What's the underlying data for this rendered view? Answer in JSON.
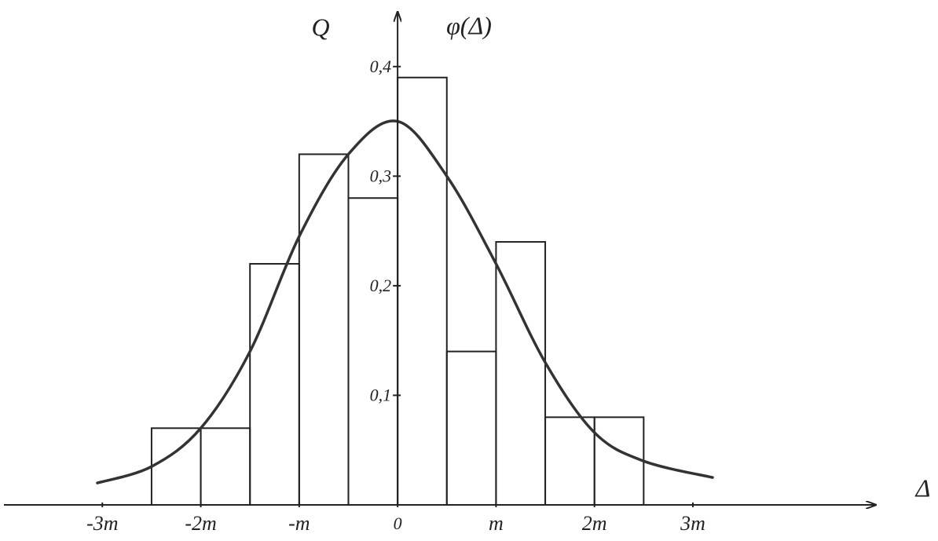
{
  "chart_data": {
    "type": "histogram",
    "xlabel": "Δ",
    "ylabels": [
      "Q",
      "φ(Δ)"
    ],
    "bins": [
      -2.5,
      -2,
      -1.5,
      -1,
      -0.5,
      0,
      0.5,
      1,
      1.5,
      2,
      2.5
    ],
    "counts": [
      0.07,
      0.07,
      0.22,
      0.32,
      0.28,
      0.39,
      0.14,
      0.24,
      0.08,
      0.08
    ],
    "curve": {
      "x": [
        -3.05,
        -2.5,
        -2,
        -1.5,
        -1,
        -0.5,
        0,
        0.5,
        1,
        1.5,
        2,
        2.5,
        3.2
      ],
      "values": [
        0.02,
        0.035,
        0.07,
        0.14,
        0.245,
        0.32,
        0.35,
        0.3,
        0.22,
        0.13,
        0.066,
        0.04,
        0.025
      ]
    },
    "xlim": [
      -4,
      4.86
    ],
    "ylim": [
      0,
      0.45
    ],
    "xticks": [
      {
        "value": -3,
        "label": "-3m"
      },
      {
        "value": -2,
        "label": "-2m"
      },
      {
        "value": -1,
        "label": "-m"
      },
      0,
      {
        "value": 1,
        "label": "m"
      },
      {
        "value": 2,
        "label": "2m"
      },
      {
        "value": 3,
        "label": "3m"
      }
    ],
    "yticks": [
      {
        "value": 0.1,
        "label": "0,1"
      },
      {
        "value": 0.2,
        "label": "0,2"
      },
      {
        "value": 0.3,
        "label": "0,3"
      },
      {
        "value": 0.4,
        "label": "0,4"
      }
    ],
    "color": "#222222",
    "curve_color": "#333333"
  }
}
